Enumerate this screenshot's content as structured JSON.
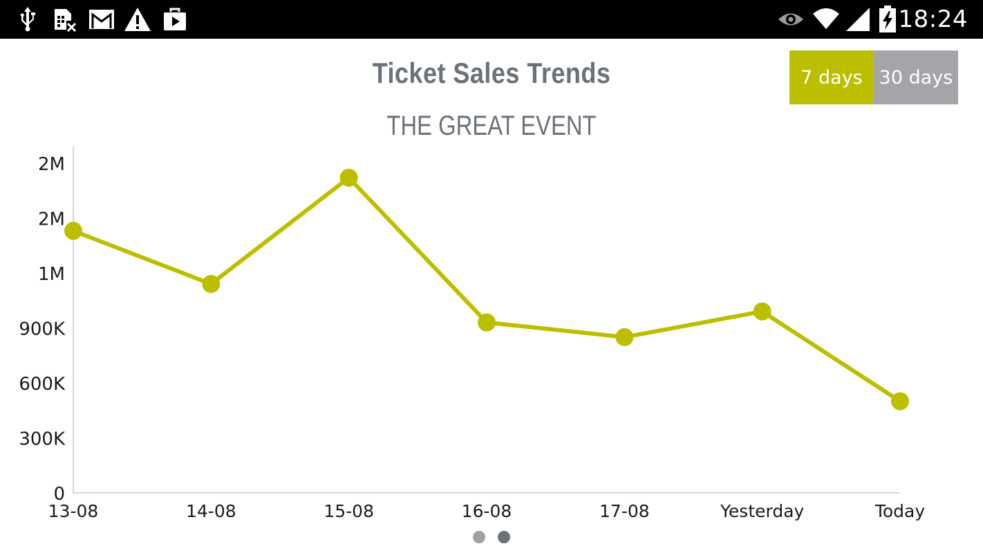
{
  "status_bar": {
    "left_icons": [
      "usb-icon",
      "sim-error-icon",
      "gmail-icon",
      "warning-icon",
      "play-store-icon"
    ],
    "right_icons": [
      "eye-icon",
      "wifi-icon",
      "signal-icon",
      "battery-charging-icon"
    ],
    "time": "18:24"
  },
  "header": {
    "title": "Ticket Sales Trends",
    "subtitle": "THE GREAT EVENT"
  },
  "range_toggle": {
    "options": [
      {
        "label": "7 days",
        "active": true
      },
      {
        "label": "30 days",
        "active": false
      }
    ]
  },
  "colors": {
    "accent": "#bcbf00",
    "inactive_button": "#a3a5a8",
    "text": "#6b7178"
  },
  "chart_data": {
    "type": "line",
    "title": "Ticket Sales Trends",
    "subtitle": "THE GREAT EVENT",
    "categories": [
      "13-08",
      "14-08",
      "15-08",
      "16-08",
      "17-08",
      "Yesterday",
      "Today"
    ],
    "values": [
      1430000,
      1140000,
      1720000,
      930000,
      850000,
      990000,
      500000
    ],
    "y_ticks": [
      0,
      300000,
      600000,
      900000,
      1200000,
      1500000,
      1800000
    ],
    "y_tick_labels": [
      "0",
      "300K",
      "600K",
      "900K",
      "1M",
      "2M",
      "2M"
    ],
    "ylim": [
      0,
      1890000
    ],
    "grid": false,
    "legend": "none",
    "xlabel": "",
    "ylabel": ""
  },
  "pager": {
    "pages": 2,
    "current": 2
  }
}
